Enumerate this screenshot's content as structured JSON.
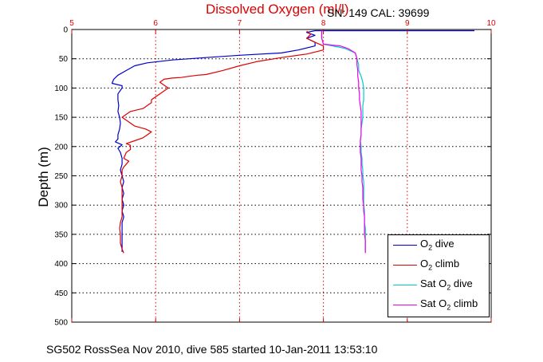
{
  "header": {
    "title": "Dissolved Oxygen (ml/l)",
    "instrument": "SN: 149  CAL: 39699"
  },
  "footer": {
    "caption": "SG502 RossSea Nov 2010, dive 585 started 10-Jan-2011 13:53:10"
  },
  "chart_data": {
    "type": "line",
    "title": "Dissolved Oxygen (ml/l)",
    "ylabel": "Depth (m)",
    "xlabel": "",
    "xlim": [
      5,
      10
    ],
    "ylim": [
      0,
      500
    ],
    "y_reversed": true,
    "x_axis_position": "top",
    "grid": true,
    "x_ticks": [
      "5",
      "6",
      "7",
      "8",
      "9",
      "10"
    ],
    "y_ticks": [
      "0",
      "50",
      "100",
      "150",
      "200",
      "250",
      "300",
      "350",
      "400",
      "450",
      "500"
    ],
    "legend": {
      "position": "bottom-right",
      "entries": [
        {
          "base": "O",
          "sub": "2",
          "suffix": " dive",
          "color": "#0000cc"
        },
        {
          "base": "O",
          "sub": "2",
          "suffix": " climb",
          "color": "#e00000"
        },
        {
          "base": "Sat O",
          "sub": "2",
          "suffix": " dive",
          "color": "#00cccc"
        },
        {
          "base": "Sat O",
          "sub": "2",
          "suffix": " climb",
          "color": "#ee00ee"
        }
      ]
    },
    "series": [
      {
        "name": "O2 dive",
        "color": "#0000cc",
        "points": [
          [
            9.8,
            2
          ],
          [
            8.2,
            2
          ],
          [
            7.9,
            2
          ],
          [
            7.8,
            5
          ],
          [
            7.9,
            10
          ],
          [
            7.8,
            15
          ],
          [
            7.9,
            22
          ],
          [
            7.9,
            28
          ],
          [
            7.7,
            35
          ],
          [
            7.5,
            40
          ],
          [
            7.0,
            44
          ],
          [
            6.6,
            48
          ],
          [
            6.2,
            52
          ],
          [
            5.9,
            57
          ],
          [
            5.75,
            62
          ],
          [
            5.65,
            70
          ],
          [
            5.55,
            78
          ],
          [
            5.5,
            85
          ],
          [
            5.48,
            92
          ],
          [
            5.6,
            96
          ],
          [
            5.6,
            100
          ],
          [
            5.55,
            110
          ],
          [
            5.55,
            120
          ],
          [
            5.56,
            130
          ],
          [
            5.55,
            140
          ],
          [
            5.57,
            150
          ],
          [
            5.58,
            160
          ],
          [
            5.57,
            170
          ],
          [
            5.55,
            180
          ],
          [
            5.55,
            187
          ],
          [
            5.52,
            192
          ],
          [
            5.6,
            197
          ],
          [
            5.55,
            203
          ],
          [
            5.58,
            210
          ],
          [
            5.6,
            220
          ],
          [
            5.6,
            230
          ],
          [
            5.58,
            240
          ],
          [
            5.6,
            250
          ],
          [
            5.62,
            260
          ],
          [
            5.6,
            270
          ],
          [
            5.62,
            280
          ],
          [
            5.6,
            290
          ],
          [
            5.62,
            300
          ],
          [
            5.6,
            310
          ],
          [
            5.62,
            320
          ],
          [
            5.6,
            330
          ],
          [
            5.6,
            340
          ],
          [
            5.6,
            350
          ],
          [
            5.6,
            360
          ],
          [
            5.6,
            370
          ],
          [
            5.6,
            380
          ]
        ]
      },
      {
        "name": "O2 climb",
        "color": "#e00000",
        "points": [
          [
            5.62,
            382
          ],
          [
            5.6,
            375
          ],
          [
            5.58,
            365
          ],
          [
            5.58,
            350
          ],
          [
            5.57,
            340
          ],
          [
            5.58,
            330
          ],
          [
            5.6,
            320
          ],
          [
            5.6,
            310
          ],
          [
            5.6,
            300
          ],
          [
            5.6,
            290
          ],
          [
            5.6,
            280
          ],
          [
            5.6,
            270
          ],
          [
            5.58,
            260
          ],
          [
            5.6,
            250
          ],
          [
            5.6,
            240
          ],
          [
            5.62,
            235
          ],
          [
            5.65,
            230
          ],
          [
            5.68,
            225
          ],
          [
            5.62,
            220
          ],
          [
            5.65,
            210
          ],
          [
            5.7,
            205
          ],
          [
            5.7,
            198
          ],
          [
            5.65,
            195
          ],
          [
            5.75,
            190
          ],
          [
            5.85,
            185
          ],
          [
            5.9,
            180
          ],
          [
            5.95,
            175
          ],
          [
            5.88,
            170
          ],
          [
            5.75,
            165
          ],
          [
            5.7,
            160
          ],
          [
            5.65,
            155
          ],
          [
            5.6,
            150
          ],
          [
            5.65,
            145
          ],
          [
            5.7,
            140
          ],
          [
            5.85,
            135
          ],
          [
            5.9,
            130
          ],
          [
            5.95,
            125
          ],
          [
            5.95,
            120
          ],
          [
            6.0,
            115
          ],
          [
            6.05,
            110
          ],
          [
            6.1,
            105
          ],
          [
            6.15,
            100
          ],
          [
            6.1,
            95
          ],
          [
            6.05,
            90
          ],
          [
            6.1,
            85
          ],
          [
            6.2,
            83
          ],
          [
            6.3,
            82
          ],
          [
            6.4,
            80
          ],
          [
            6.5,
            78
          ],
          [
            6.6,
            77
          ],
          [
            6.8,
            70
          ],
          [
            7.0,
            62
          ],
          [
            7.2,
            55
          ],
          [
            7.5,
            48
          ],
          [
            7.8,
            42
          ],
          [
            8.0,
            35
          ],
          [
            8.0,
            28
          ],
          [
            7.9,
            22
          ],
          [
            7.8,
            15
          ],
          [
            7.85,
            8
          ],
          [
            7.8,
            3
          ]
        ]
      },
      {
        "name": "Sat O2 dive",
        "color": "#00cccc",
        "points": [
          [
            7.98,
            2
          ],
          [
            7.98,
            15
          ],
          [
            8.0,
            25
          ],
          [
            8.25,
            32
          ],
          [
            8.38,
            40
          ],
          [
            8.4,
            50
          ],
          [
            8.42,
            60
          ],
          [
            8.42,
            70
          ],
          [
            8.45,
            80
          ],
          [
            8.47,
            90
          ],
          [
            8.48,
            100
          ],
          [
            8.48,
            110
          ],
          [
            8.48,
            120
          ],
          [
            8.47,
            130
          ],
          [
            8.47,
            140
          ],
          [
            8.47,
            150
          ],
          [
            8.46,
            160
          ],
          [
            8.45,
            170
          ],
          [
            8.45,
            180
          ],
          [
            8.44,
            190
          ],
          [
            8.45,
            200
          ],
          [
            8.45,
            210
          ],
          [
            8.46,
            220
          ],
          [
            8.46,
            230
          ],
          [
            8.47,
            240
          ],
          [
            8.47,
            250
          ],
          [
            8.48,
            260
          ],
          [
            8.48,
            270
          ],
          [
            8.48,
            280
          ],
          [
            8.48,
            290
          ],
          [
            8.48,
            300
          ],
          [
            8.49,
            310
          ],
          [
            8.49,
            320
          ],
          [
            8.49,
            330
          ],
          [
            8.5,
            340
          ],
          [
            8.5,
            350
          ],
          [
            8.5,
            360
          ],
          [
            8.5,
            370
          ],
          [
            8.5,
            380
          ]
        ]
      },
      {
        "name": "Sat O2 climb",
        "color": "#ee00ee",
        "points": [
          [
            8.5,
            382
          ],
          [
            8.5,
            370
          ],
          [
            8.5,
            360
          ],
          [
            8.49,
            350
          ],
          [
            8.49,
            340
          ],
          [
            8.49,
            330
          ],
          [
            8.49,
            320
          ],
          [
            8.48,
            310
          ],
          [
            8.48,
            300
          ],
          [
            8.47,
            290
          ],
          [
            8.47,
            280
          ],
          [
            8.47,
            270
          ],
          [
            8.46,
            260
          ],
          [
            8.46,
            250
          ],
          [
            8.45,
            240
          ],
          [
            8.45,
            230
          ],
          [
            8.45,
            220
          ],
          [
            8.44,
            210
          ],
          [
            8.44,
            200
          ],
          [
            8.44,
            190
          ],
          [
            8.45,
            180
          ],
          [
            8.45,
            170
          ],
          [
            8.45,
            160
          ],
          [
            8.45,
            150
          ],
          [
            8.45,
            140
          ],
          [
            8.44,
            130
          ],
          [
            8.43,
            120
          ],
          [
            8.43,
            110
          ],
          [
            8.42,
            100
          ],
          [
            8.42,
            90
          ],
          [
            8.41,
            80
          ],
          [
            8.41,
            70
          ],
          [
            8.4,
            60
          ],
          [
            8.4,
            50
          ],
          [
            8.38,
            40
          ],
          [
            8.3,
            33
          ],
          [
            8.2,
            28
          ],
          [
            8.0,
            25
          ],
          [
            7.98,
            15
          ],
          [
            7.98,
            2
          ]
        ]
      }
    ]
  }
}
